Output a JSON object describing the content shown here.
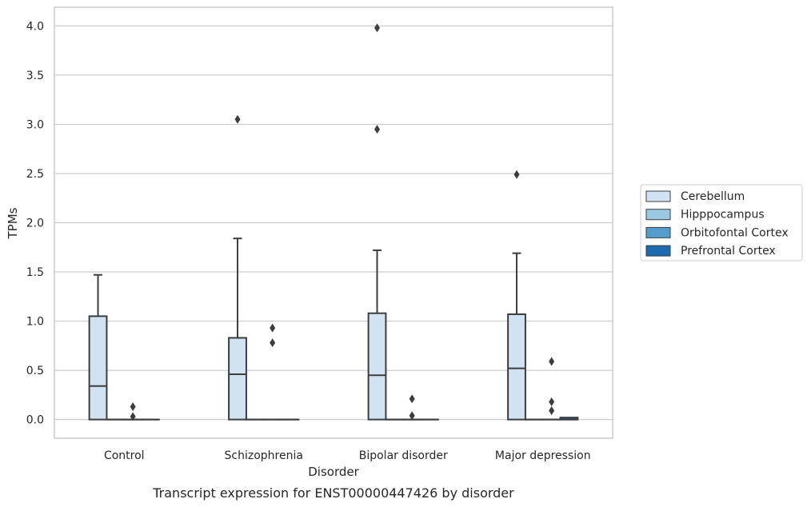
{
  "chart_data": {
    "type": "box",
    "xlabel": "Disorder",
    "ylabel": "TPMs",
    "caption": "Transcript expression for ENST00000447426 by disorder",
    "categories": [
      "Control",
      "Schizophrenia",
      "Bipolar disorder",
      "Major depression"
    ],
    "ylim": [
      -0.19,
      4.19
    ],
    "yticks": [
      0.0,
      0.5,
      1.0,
      1.5,
      2.0,
      2.5,
      3.0,
      3.5,
      4.0
    ],
    "ytick_labels": [
      "0.0",
      "0.5",
      "1.0",
      "1.5",
      "2.0",
      "2.5",
      "3.0",
      "3.5",
      "4.0"
    ],
    "grid": true,
    "legend_position": "right",
    "series": [
      {
        "name": "Cerebellum",
        "color": "#d1e2f2",
        "boxes": [
          {
            "min": 0.0,
            "q1": 0.0,
            "median": 0.34,
            "q3": 1.05,
            "max": 1.47,
            "outliers": []
          },
          {
            "min": 0.0,
            "q1": 0.0,
            "median": 0.46,
            "q3": 0.83,
            "max": 1.84,
            "outliers": [
              3.05
            ]
          },
          {
            "min": 0.0,
            "q1": 0.0,
            "median": 0.45,
            "q3": 1.08,
            "max": 1.72,
            "outliers": [
              2.95,
              3.98
            ]
          },
          {
            "min": 0.0,
            "q1": 0.0,
            "median": 0.52,
            "q3": 1.07,
            "max": 1.69,
            "outliers": [
              2.49
            ]
          }
        ]
      },
      {
        "name": "Hipppocampus",
        "color": "#9ac8e0",
        "boxes": [
          {
            "min": 0.0,
            "q1": 0.0,
            "median": 0.0,
            "q3": 0.0,
            "max": 0.0,
            "outliers": []
          },
          {
            "min": 0.0,
            "q1": 0.0,
            "median": 0.0,
            "q3": 0.0,
            "max": 0.0,
            "outliers": []
          },
          {
            "min": 0.0,
            "q1": 0.0,
            "median": 0.0,
            "q3": 0.0,
            "max": 0.0,
            "outliers": []
          },
          {
            "min": 0.0,
            "q1": 0.0,
            "median": 0.0,
            "q3": 0.0,
            "max": 0.0,
            "outliers": []
          }
        ]
      },
      {
        "name": "Orbitofontal Cortex",
        "color": "#529dcc",
        "boxes": [
          {
            "min": 0.0,
            "q1": 0.0,
            "median": 0.0,
            "q3": 0.0,
            "max": 0.0,
            "outliers": [
              0.03,
              0.13
            ]
          },
          {
            "min": 0.0,
            "q1": 0.0,
            "median": 0.0,
            "q3": 0.0,
            "max": 0.0,
            "outliers": [
              0.78,
              0.93
            ]
          },
          {
            "min": 0.0,
            "q1": 0.0,
            "median": 0.0,
            "q3": 0.0,
            "max": 0.0,
            "outliers": [
              0.04,
              0.21
            ]
          },
          {
            "min": 0.0,
            "q1": 0.0,
            "median": 0.0,
            "q3": 0.0,
            "max": 0.0,
            "outliers": [
              0.09,
              0.18,
              0.59
            ]
          }
        ]
      },
      {
        "name": "Prefrontal Cortex",
        "color": "#1c6aaf",
        "boxes": [
          {
            "min": 0.0,
            "q1": 0.0,
            "median": 0.0,
            "q3": 0.0,
            "max": 0.0,
            "outliers": []
          },
          {
            "min": 0.0,
            "q1": 0.0,
            "median": 0.0,
            "q3": 0.0,
            "max": 0.0,
            "outliers": []
          },
          {
            "min": 0.0,
            "q1": 0.0,
            "median": 0.0,
            "q3": 0.0,
            "max": 0.0,
            "outliers": []
          },
          {
            "min": 0.0,
            "q1": 0.0,
            "median": 0.0,
            "q3": 0.02,
            "max": 0.02,
            "outliers": []
          }
        ]
      }
    ]
  }
}
